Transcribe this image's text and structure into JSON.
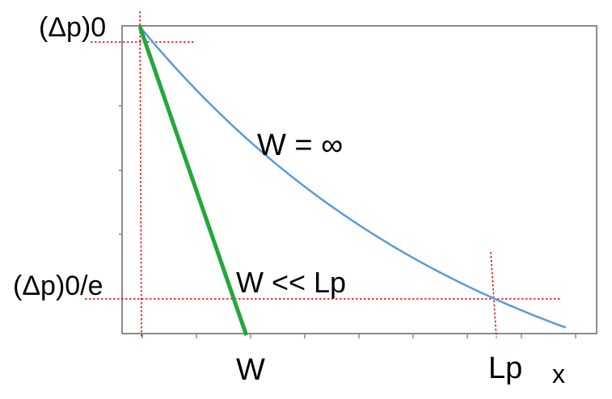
{
  "chart_data": {
    "type": "line",
    "title": "",
    "xlabel": "x",
    "ylabel": "",
    "x_tick_labels": {
      "W": "W",
      "Lp": "Lp"
    },
    "y_tick_labels": {
      "top": "(Δp)0",
      "bottom": "(Δp)0/e"
    },
    "series": [
      {
        "name": "W = ∞",
        "color": "#5b9bd5",
        "shape": "exponential decay",
        "start": [
          0,
          1.0
        ],
        "passes": [
          1.0,
          0.3679
        ],
        "end": [
          1.2,
          0.301
        ]
      },
      {
        "name": "W << Lp",
        "color": "#22a83a",
        "shape": "linear",
        "start": [
          0,
          1.0
        ],
        "end": [
          0.3,
          0.0
        ]
      }
    ],
    "guides": {
      "color": "#e00000",
      "style": "dotted"
    },
    "xlim": [
      0,
      1.2
    ],
    "ylim": [
      0,
      1.0
    ],
    "grid": false
  }
}
